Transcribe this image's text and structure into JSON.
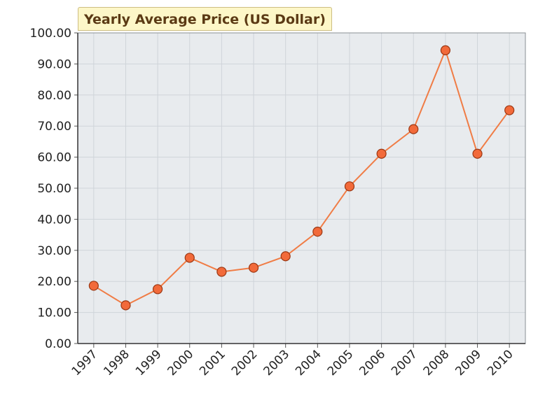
{
  "chart_data": {
    "type": "line",
    "title": "Yearly Average Price (US Dollar)",
    "xlabel": "",
    "ylabel": "",
    "categories": [
      "1997",
      "1998",
      "1999",
      "2000",
      "2001",
      "2002",
      "2003",
      "2004",
      "2005",
      "2006",
      "2007",
      "2008",
      "2009",
      "2010"
    ],
    "values": [
      18.6,
      12.3,
      17.5,
      27.6,
      23.1,
      24.4,
      28.1,
      36.0,
      50.6,
      61.1,
      69.0,
      94.4,
      61.1,
      75.1
    ],
    "ylim": [
      0,
      100
    ],
    "yticks": [
      "0.00",
      "10.00",
      "20.00",
      "30.00",
      "40.00",
      "50.00",
      "60.00",
      "70.00",
      "80.00",
      "90.00",
      "100.00"
    ],
    "grid": true,
    "colors": {
      "line": "#f07c45",
      "marker_fill": "#f26a3a",
      "marker_stroke": "#9a3713",
      "plot_bg": "#e8ebee",
      "grid": "#cfd4d9"
    }
  }
}
